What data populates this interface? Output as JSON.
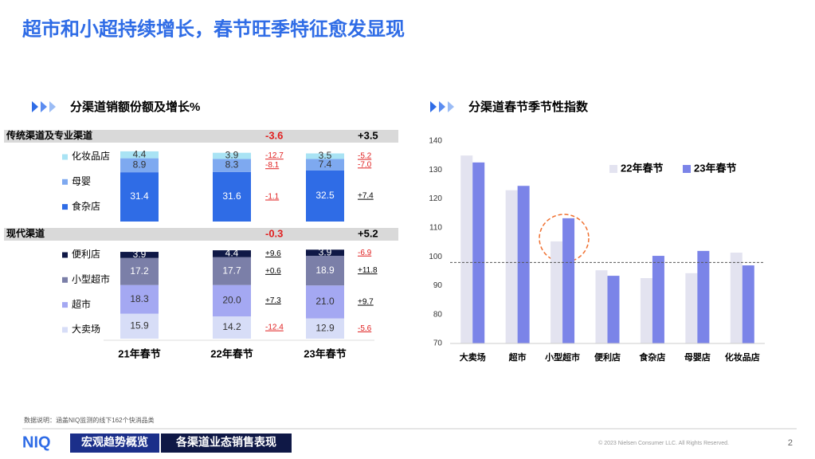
{
  "title": "超市和小超持续增长，春节旺季特征愈发显现",
  "chart_data": [
    {
      "type": "stacked-bar",
      "title": "分渠道销额份额及增长%",
      "categories": [
        "21年春节",
        "22年春节",
        "23年春节"
      ],
      "groups": [
        {
          "name": "传统渠道及专业渠道",
          "changes": {
            "values": [
              -3.6,
              3.5
            ],
            "value_labels": [
              "-3.6",
              "+3.5"
            ]
          },
          "series": [
            {
              "name": "化妆品店",
              "color": "#a9e3f4",
              "values": [
                4.4,
                3.9,
                3.5
              ],
              "changes": {
                "values": [
                  -12.7,
                  -5.2
                ],
                "value_labels": [
                  "-12.7",
                  "-5.2"
                ]
              }
            },
            {
              "name": "母婴",
              "color": "#7ea9f0",
              "values": [
                8.9,
                8.3,
                7.4
              ],
              "changes": {
                "values": [
                  -8.1,
                  -7.0
                ],
                "value_labels": [
                  "-8.1",
                  "-7.0"
                ]
              }
            },
            {
              "name": "食杂店",
              "color": "#2f6ce6",
              "values": [
                31.4,
                31.6,
                32.5
              ],
              "changes": {
                "values": [
                  -1.1,
                  7.4
                ],
                "value_labels": [
                  "-1.1",
                  "+7.4"
                ]
              }
            }
          ]
        },
        {
          "name": "现代渠道",
          "changes": {
            "values": [
              -0.3,
              5.2
            ],
            "value_labels": [
              "-0.3",
              "+5.2"
            ]
          },
          "series": [
            {
              "name": "便利店",
              "color": "#0f1846",
              "values": [
                3.9,
                4.4,
                3.9
              ],
              "changes": {
                "values": [
                  9.6,
                  -6.9
                ],
                "value_labels": [
                  "+9.6",
                  "-6.9"
                ]
              }
            },
            {
              "name": "小型超市",
              "color": "#7b7fa8",
              "values": [
                17.2,
                17.7,
                18.9
              ],
              "changes": {
                "values": [
                  0.6,
                  11.8
                ],
                "value_labels": [
                  "+0.6",
                  "+11.8"
                ]
              }
            },
            {
              "name": "超市",
              "color": "#a4a8f2",
              "values": [
                18.3,
                20.0,
                21.0
              ],
              "value_labels": [
                "18.3",
                "20.0",
                "21.0"
              ],
              "changes": {
                "values": [
                  7.3,
                  9.7
                ],
                "value_labels": [
                  "+7.3",
                  "+9.7"
                ]
              }
            },
            {
              "name": "大卖场",
              "color": "#d7ddf7",
              "values": [
                15.9,
                14.2,
                12.9
              ],
              "changes": {
                "values": [
                  -12.4,
                  -5.6
                ],
                "value_labels": [
                  "-12.4",
                  "-5.6"
                ]
              }
            }
          ]
        }
      ]
    },
    {
      "type": "bar",
      "title": "分渠道春节季节性指数",
      "categories": [
        "大卖场",
        "超市",
        "小型超市",
        "便利店",
        "食杂店",
        "母婴店",
        "化妆品店"
      ],
      "series": [
        {
          "name": "22年春节",
          "color": "#e3e3f0",
          "values": [
            135,
            123,
            105.3,
            95.3,
            92.6,
            94.3,
            101.4
          ]
        },
        {
          "name": "23年春节",
          "color": "#7b84e8",
          "values": [
            132.6,
            124.5,
            113.3,
            93.4,
            100.3,
            102,
            97
          ]
        }
      ],
      "ylim": [
        70,
        140
      ],
      "yticks": [
        70,
        80,
        90,
        100,
        110,
        120,
        130,
        140
      ],
      "reference_line": 98
    }
  ],
  "footer": {
    "note": "数据说明：涵盖NIQ监测的线下162个快消品类",
    "logo": "NIQ",
    "tab1": "宏观趋势概览",
    "tab2": "各渠道业态销售表现",
    "copyright": "© 2023 Nielsen Consumer LLC. All Rights Reserved.",
    "page": "2"
  }
}
